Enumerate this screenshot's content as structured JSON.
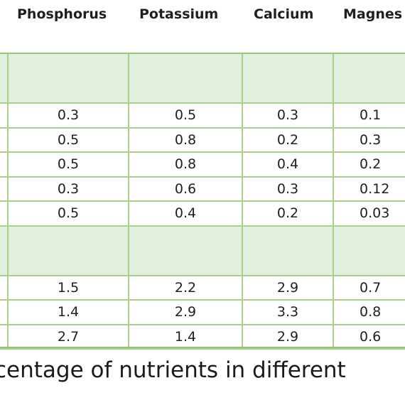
{
  "table": {
    "headers": [
      "Phosphorus",
      "Potassium",
      "Calcium",
      "Magnes"
    ],
    "rows": [
      {
        "type": "group",
        "values": [
          "",
          "",
          "",
          ""
        ]
      },
      {
        "type": "data",
        "values": [
          "0.3",
          "0.5",
          "0.3",
          "0.1"
        ]
      },
      {
        "type": "data",
        "values": [
          "0.5",
          "0.8",
          "0.2",
          "0.3"
        ]
      },
      {
        "type": "data",
        "values": [
          "0.5",
          "0.8",
          "0.4",
          "0.2"
        ]
      },
      {
        "type": "data",
        "values": [
          "0.3",
          "0.6",
          "0.3",
          "0.12"
        ]
      },
      {
        "type": "data",
        "values": [
          "0.5",
          "0.4",
          "0.2",
          "0.03"
        ]
      },
      {
        "type": "group",
        "values": [
          "",
          "",
          "",
          ""
        ]
      },
      {
        "type": "data",
        "values": [
          "1.5",
          "2.2",
          "2.9",
          "0.7"
        ]
      },
      {
        "type": "data",
        "values": [
          "1.4",
          "2.9",
          "3.3",
          "0.8"
        ]
      },
      {
        "type": "data",
        "values": [
          "2.7",
          "1.4",
          "2.9",
          "0.6"
        ]
      }
    ]
  },
  "caption": "centage of nutrients in different"
}
